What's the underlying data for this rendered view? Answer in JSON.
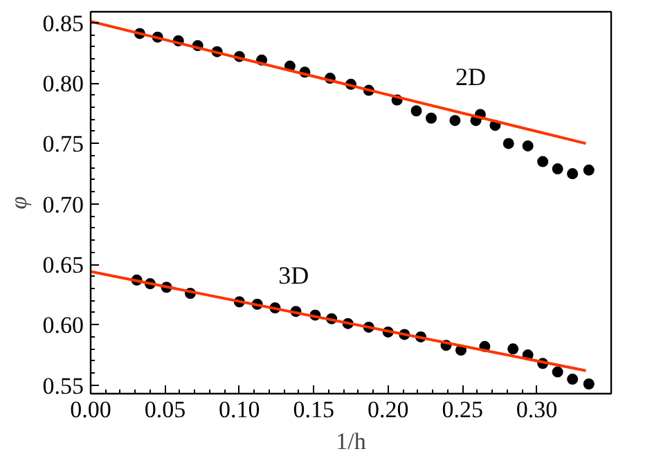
{
  "chart_data": {
    "type": "scatter",
    "xlabel": "1/h",
    "ylabel": "φ",
    "xlim": [
      0,
      0.35
    ],
    "ylim": [
      0.543,
      0.859
    ],
    "xticks": [
      {
        "value": 0,
        "label": "0.00"
      },
      {
        "value": 0.05,
        "label": "0.05"
      },
      {
        "value": 0.1,
        "label": "0.10"
      },
      {
        "value": 0.15,
        "label": "0.15"
      },
      {
        "value": 0.2,
        "label": "0.20"
      },
      {
        "value": 0.25,
        "label": "0.25"
      },
      {
        "value": 0.3,
        "label": "0.30"
      }
    ],
    "yticks": [
      {
        "value": 0.55,
        "label": "0.55"
      },
      {
        "value": 0.6,
        "label": "0.60"
      },
      {
        "value": 0.65,
        "label": "0.65"
      },
      {
        "value": 0.7,
        "label": "0.70"
      },
      {
        "value": 0.75,
        "label": "0.75"
      },
      {
        "value": 0.8,
        "label": "0.80"
      },
      {
        "value": 0.85,
        "label": "0.85"
      }
    ],
    "grid": false,
    "series": [
      {
        "marker": "circle",
        "color": "#000000",
        "x": [
          0.033,
          0.045,
          0.059,
          0.072,
          0.085,
          0.1,
          0.115,
          0.134,
          0.144,
          0.161,
          0.175,
          0.187,
          0.206,
          0.219,
          0.229,
          0.245,
          0.259,
          0.262,
          0.272,
          0.281,
          0.294,
          0.304,
          0.314,
          0.324,
          0.335
        ],
        "values": [
          0.841,
          0.838,
          0.835,
          0.831,
          0.826,
          0.822,
          0.819,
          0.814,
          0.809,
          0.804,
          0.799,
          0.794,
          0.786,
          0.777,
          0.771,
          0.769,
          0.769,
          0.774,
          0.765,
          0.75,
          0.748,
          0.735,
          0.729,
          0.725,
          0.728
        ]
      },
      {
        "type": "line",
        "color": "#ff3300",
        "x": [
          0,
          0.333
        ],
        "values": [
          0.851,
          0.75
        ]
      },
      {
        "marker": "circle",
        "color": "#000000",
        "x": [
          0.031,
          0.04,
          0.051,
          0.067,
          0.1,
          0.112,
          0.124,
          0.138,
          0.151,
          0.162,
          0.173,
          0.187,
          0.2,
          0.211,
          0.222,
          0.239,
          0.249,
          0.265,
          0.284,
          0.294,
          0.304,
          0.314,
          0.324,
          0.335
        ],
        "values": [
          0.637,
          0.634,
          0.631,
          0.626,
          0.619,
          0.617,
          0.614,
          0.611,
          0.608,
          0.605,
          0.601,
          0.598,
          0.594,
          0.592,
          0.59,
          0.583,
          0.579,
          0.582,
          0.58,
          0.575,
          0.568,
          0.561,
          0.555,
          0.551
        ]
      },
      {
        "type": "line",
        "color": "#ff3300",
        "x": [
          0,
          0.333
        ],
        "values": [
          0.644,
          0.562
        ]
      }
    ],
    "annotations": [
      "2D",
      "3D"
    ]
  }
}
